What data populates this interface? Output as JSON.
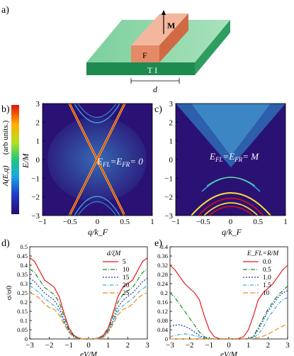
{
  "figure": {
    "panel_labels": [
      "a)",
      "b)",
      "c)",
      "d)",
      "e)"
    ],
    "schematic": {
      "magnetization_label": "M",
      "ferromagnet_label": "F",
      "ti_label": "T I",
      "width_label": "d",
      "colors": {
        "ti_top": "#6fbf8f",
        "ti_front": "#1e8a4f",
        "ti_side": "#3aa56a",
        "f_top": "#f2b49a",
        "f_front": "#e07b5a",
        "f_side": "#c9613f"
      }
    },
    "colorbar": {
      "label": "A(E,q)",
      "unit": "(arb units.)"
    },
    "spectral": {
      "b": {
        "equation": "E_FL = E_FR = 0",
        "eq_parts": [
          "E",
          "FL",
          "=E",
          "FR",
          "= 0"
        ]
      },
      "c": {
        "equation": "E_FL = E_FR = M",
        "eq_parts": [
          "E",
          "FL",
          "=E",
          "FR",
          "= M"
        ]
      },
      "ylabel": "E/M",
      "xlabel": "q/k_F",
      "xticks": [
        "−1",
        "−0.5",
        "0",
        "0.5",
        "1"
      ],
      "yticks": [
        "3",
        "2",
        "1",
        "0",
        "−1",
        "−2",
        "−3"
      ]
    }
  },
  "chart_data": [
    {
      "type": "line",
      "panel": "d)",
      "xlabel": "eV/M",
      "ylabel": "σ/σ0",
      "xlim": [
        -3,
        3
      ],
      "ylim": [
        0,
        0.5
      ],
      "xticks": [
        "−3",
        "−2",
        "−1",
        "0",
        "1",
        "2",
        "3"
      ],
      "yticks": [
        "0",
        "0.05",
        "0.1",
        "0.15",
        "0.2",
        "0.25",
        "0.3",
        "0.35",
        "0.4",
        "0.45",
        "0.5"
      ],
      "legend_title": "d/ξM",
      "legend_position": "top-right",
      "x": [
        -3,
        -2.75,
        -2.5,
        -2.25,
        -2,
        -1.75,
        -1.5,
        -1.25,
        -1,
        -0.75,
        -0.5,
        -0.25,
        0,
        0.25,
        0.5,
        0.75,
        1,
        1.25,
        1.5,
        1.75,
        2,
        2.25,
        2.5,
        2.75,
        3
      ],
      "series": [
        {
          "name": "5",
          "color": "#e41a1c",
          "dash": "",
          "values": [
            0.44,
            0.42,
            0.37,
            0.32,
            0.3,
            0.28,
            0.23,
            0.14,
            0.06,
            0.02,
            0.005,
            0,
            0,
            0,
            0.005,
            0.02,
            0.06,
            0.14,
            0.23,
            0.28,
            0.3,
            0.32,
            0.37,
            0.42,
            0.44
          ]
        },
        {
          "name": "10",
          "color": "#1a8a1a",
          "dash": "6,2,1,2",
          "values": [
            0.38,
            0.36,
            0.32,
            0.28,
            0.26,
            0.24,
            0.2,
            0.12,
            0.05,
            0.015,
            0.004,
            0,
            0,
            0,
            0.004,
            0.015,
            0.05,
            0.12,
            0.2,
            0.24,
            0.26,
            0.28,
            0.32,
            0.36,
            0.38
          ]
        },
        {
          "name": "15",
          "color": "#1f2fbf",
          "dash": "2,2",
          "values": [
            0.33,
            0.31,
            0.28,
            0.25,
            0.23,
            0.21,
            0.17,
            0.1,
            0.045,
            0.012,
            0.003,
            0,
            0,
            0,
            0.003,
            0.012,
            0.045,
            0.1,
            0.17,
            0.21,
            0.23,
            0.25,
            0.28,
            0.31,
            0.33
          ]
        },
        {
          "name": "20",
          "color": "#3fa9c9",
          "dash": "5,2,1,2",
          "values": [
            0.29,
            0.27,
            0.25,
            0.22,
            0.2,
            0.18,
            0.15,
            0.09,
            0.04,
            0.01,
            0.002,
            0,
            0,
            0,
            0.002,
            0.01,
            0.04,
            0.09,
            0.15,
            0.18,
            0.2,
            0.22,
            0.25,
            0.27,
            0.29
          ]
        },
        {
          "name": "25",
          "color": "#f08a1c",
          "dash": "7,3",
          "values": [
            0.25,
            0.24,
            0.22,
            0.19,
            0.17,
            0.16,
            0.13,
            0.08,
            0.035,
            0.008,
            0.002,
            0,
            0,
            0,
            0.002,
            0.008,
            0.035,
            0.08,
            0.13,
            0.16,
            0.17,
            0.19,
            0.22,
            0.24,
            0.25
          ]
        }
      ]
    },
    {
      "type": "line",
      "panel": "e)",
      "xlabel": "eV/M",
      "ylabel": "",
      "xlim": [
        -3,
        3
      ],
      "ylim": [
        0,
        0.4
      ],
      "xticks": [
        "−3",
        "−2",
        "−1",
        "0",
        "1",
        "2",
        "3"
      ],
      "yticks": [
        "0",
        "0.04",
        "0.08",
        "0.12",
        "0.16",
        "0.2",
        "0.24",
        "0.28",
        "0.32",
        "0.36",
        "0.4"
      ],
      "legend_title": "E_FL=R/M",
      "legend_position": "top-right",
      "x": [
        -3,
        -2.75,
        -2.5,
        -2.25,
        -2,
        -1.75,
        -1.5,
        -1.25,
        -1,
        -0.75,
        -0.5,
        -0.25,
        0,
        0.25,
        0.5,
        0.75,
        1,
        1.25,
        1.5,
        1.75,
        2,
        2.25,
        2.5,
        2.75,
        3
      ],
      "series": [
        {
          "name": "0.0",
          "color": "#e41a1c",
          "dash": "",
          "values": [
            0.32,
            0.3,
            0.27,
            0.24,
            0.22,
            0.2,
            0.17,
            0.1,
            0.04,
            0.01,
            0.002,
            0,
            0,
            0,
            0.002,
            0.01,
            0.04,
            0.1,
            0.17,
            0.2,
            0.22,
            0.24,
            0.27,
            0.3,
            0.32
          ]
        },
        {
          "name": "0.5",
          "color": "#1a8a1a",
          "dash": "6,2,1,2",
          "values": [
            0.2,
            0.18,
            0.15,
            0.12,
            0.09,
            0.06,
            0.03,
            0.01,
            0.002,
            0,
            0,
            0,
            0,
            0,
            0,
            0,
            0.002,
            0.01,
            0.05,
            0.09,
            0.13,
            0.16,
            0.19,
            0.21,
            0.23
          ]
        },
        {
          "name": "1.0",
          "color": "#1f2fbf",
          "dash": "2,2",
          "values": [
            0.055,
            0.06,
            0.062,
            0.055,
            0.045,
            0.03,
            0.015,
            0.005,
            0.001,
            0,
            0,
            0,
            0,
            0,
            0,
            0,
            0.001,
            0.01,
            0.04,
            0.08,
            0.12,
            0.15,
            0.18,
            0.2,
            0.21
          ]
        },
        {
          "name": "1.5",
          "color": "#3fa9c9",
          "dash": "5,2,1,2",
          "values": [
            0.01,
            0.015,
            0.02,
            0.022,
            0.02,
            0.015,
            0.008,
            0.003,
            0.001,
            0,
            0,
            0,
            0,
            0,
            0,
            0,
            0.001,
            0.005,
            0.02,
            0.05,
            0.09,
            0.12,
            0.15,
            0.17,
            0.18
          ]
        },
        {
          "name": "10",
          "color": "#f08a1c",
          "dash": "7,3",
          "values": [
            0,
            0,
            0,
            0,
            0,
            0,
            0,
            0,
            0,
            0,
            0,
            0,
            0,
            0,
            0,
            0,
            0,
            0.002,
            0.006,
            0.012,
            0.022,
            0.032,
            0.045,
            0.056,
            0.065
          ]
        }
      ]
    }
  ]
}
